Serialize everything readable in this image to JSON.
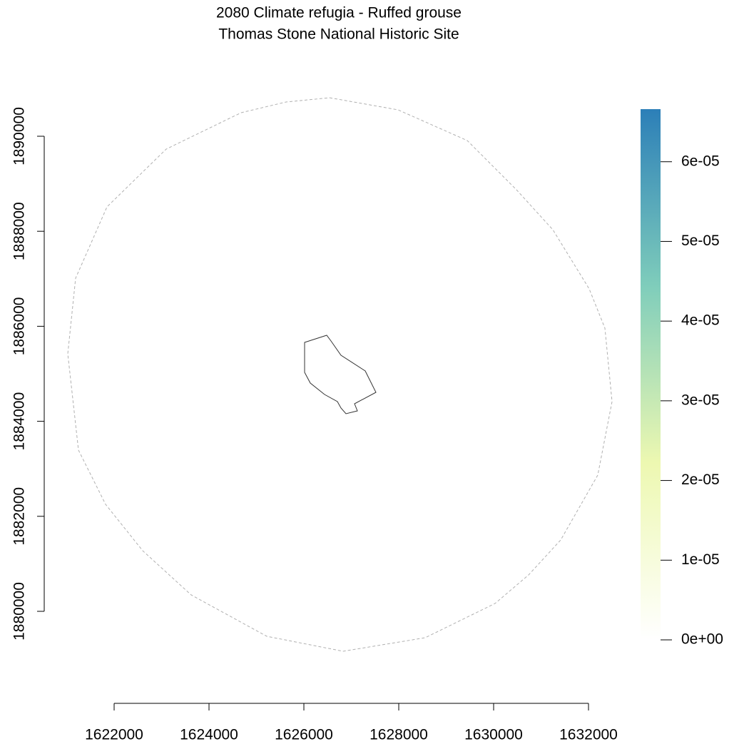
{
  "chart_data": {
    "type": "map",
    "title": "2080 Climate refugia - Ruffed grouse",
    "subtitle": "Thomas Stone National Historic Site",
    "xlim": [
      1622000,
      1632000
    ],
    "xticks": [
      1622000,
      1624000,
      1626000,
      1628000,
      1630000,
      1632000
    ],
    "ylim": [
      1880000,
      1890000
    ],
    "yticks": [
      1880000,
      1882000,
      1884000,
      1886000,
      1888000,
      1890000
    ],
    "colorbar": {
      "lim": [
        0,
        6.66e-05
      ],
      "colors": [
        "#ffffff",
        "#edf8b1",
        "#7fcdbb",
        "#2c7fb8"
      ],
      "ticks": [
        {
          "value": 0,
          "label": "0e+00"
        },
        {
          "value": 1e-05,
          "label": "1e-05"
        },
        {
          "value": 2e-05,
          "label": "2e-05"
        },
        {
          "value": 3e-05,
          "label": "3e-05"
        },
        {
          "value": 4e-05,
          "label": "4e-05"
        },
        {
          "value": 5e-05,
          "label": "5e-05"
        },
        {
          "value": 6e-05,
          "label": "6e-05"
        }
      ]
    }
  }
}
